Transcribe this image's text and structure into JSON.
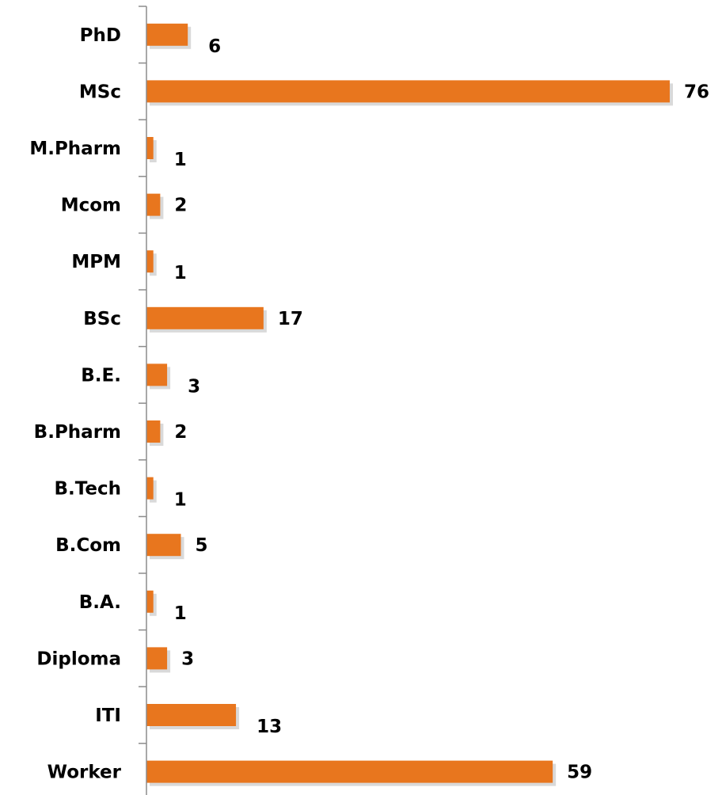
{
  "chart_data": {
    "type": "bar",
    "orientation": "horizontal",
    "categories": [
      "PhD",
      "MSc",
      "M.Pharm",
      "Mcom",
      "MPM",
      "BSc",
      "B.E.",
      "B.Pharm",
      "B.Tech",
      "B.Com",
      "B.A.",
      "Diploma",
      "ITI",
      "Worker"
    ],
    "values": [
      6,
      76,
      1,
      2,
      1,
      17,
      3,
      2,
      1,
      5,
      1,
      3,
      13,
      59
    ],
    "value_labels": [
      "6",
      "76",
      "1",
      "2",
      "1",
      "17",
      "3",
      "2",
      "1",
      "5",
      "1",
      "3",
      "13",
      "59"
    ],
    "title": "",
    "xlabel": "",
    "ylabel": "",
    "xlim": [
      0,
      76
    ],
    "grid": false,
    "legend": "none",
    "colors": {
      "bar": "#E8761E",
      "bar_shadow": "#b9b9b9",
      "axis": "#8c8c8c",
      "text": "#000000"
    }
  }
}
